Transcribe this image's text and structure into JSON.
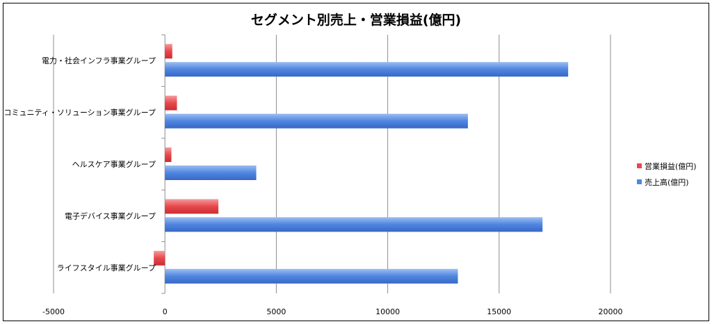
{
  "chart_data": {
    "type": "bar",
    "orientation": "horizontal",
    "title": "セグメント別売上・営業損益(億円)",
    "categories": [
      "電力・社会インフラ事業グループ",
      "コミュニティ・ソリューション事業グループ",
      "ヘルスケア事業グループ",
      "電子デバイス事業グループ",
      "ライフスタイル事業グループ"
    ],
    "series": [
      {
        "name": "営業損益(億円)",
        "color": "#e8474b",
        "values": [
          330,
          540,
          290,
          2400,
          -500
        ]
      },
      {
        "name": "売上高(億円)",
        "color": "#4f86e0",
        "values": [
          18100,
          13600,
          4100,
          16950,
          13150
        ]
      }
    ],
    "xlim": [
      -5000,
      20000
    ],
    "xticks": [
      "-5000",
      "0",
      "5000",
      "10000",
      "15000",
      "20000"
    ],
    "grid": true,
    "legend_position": "right"
  }
}
